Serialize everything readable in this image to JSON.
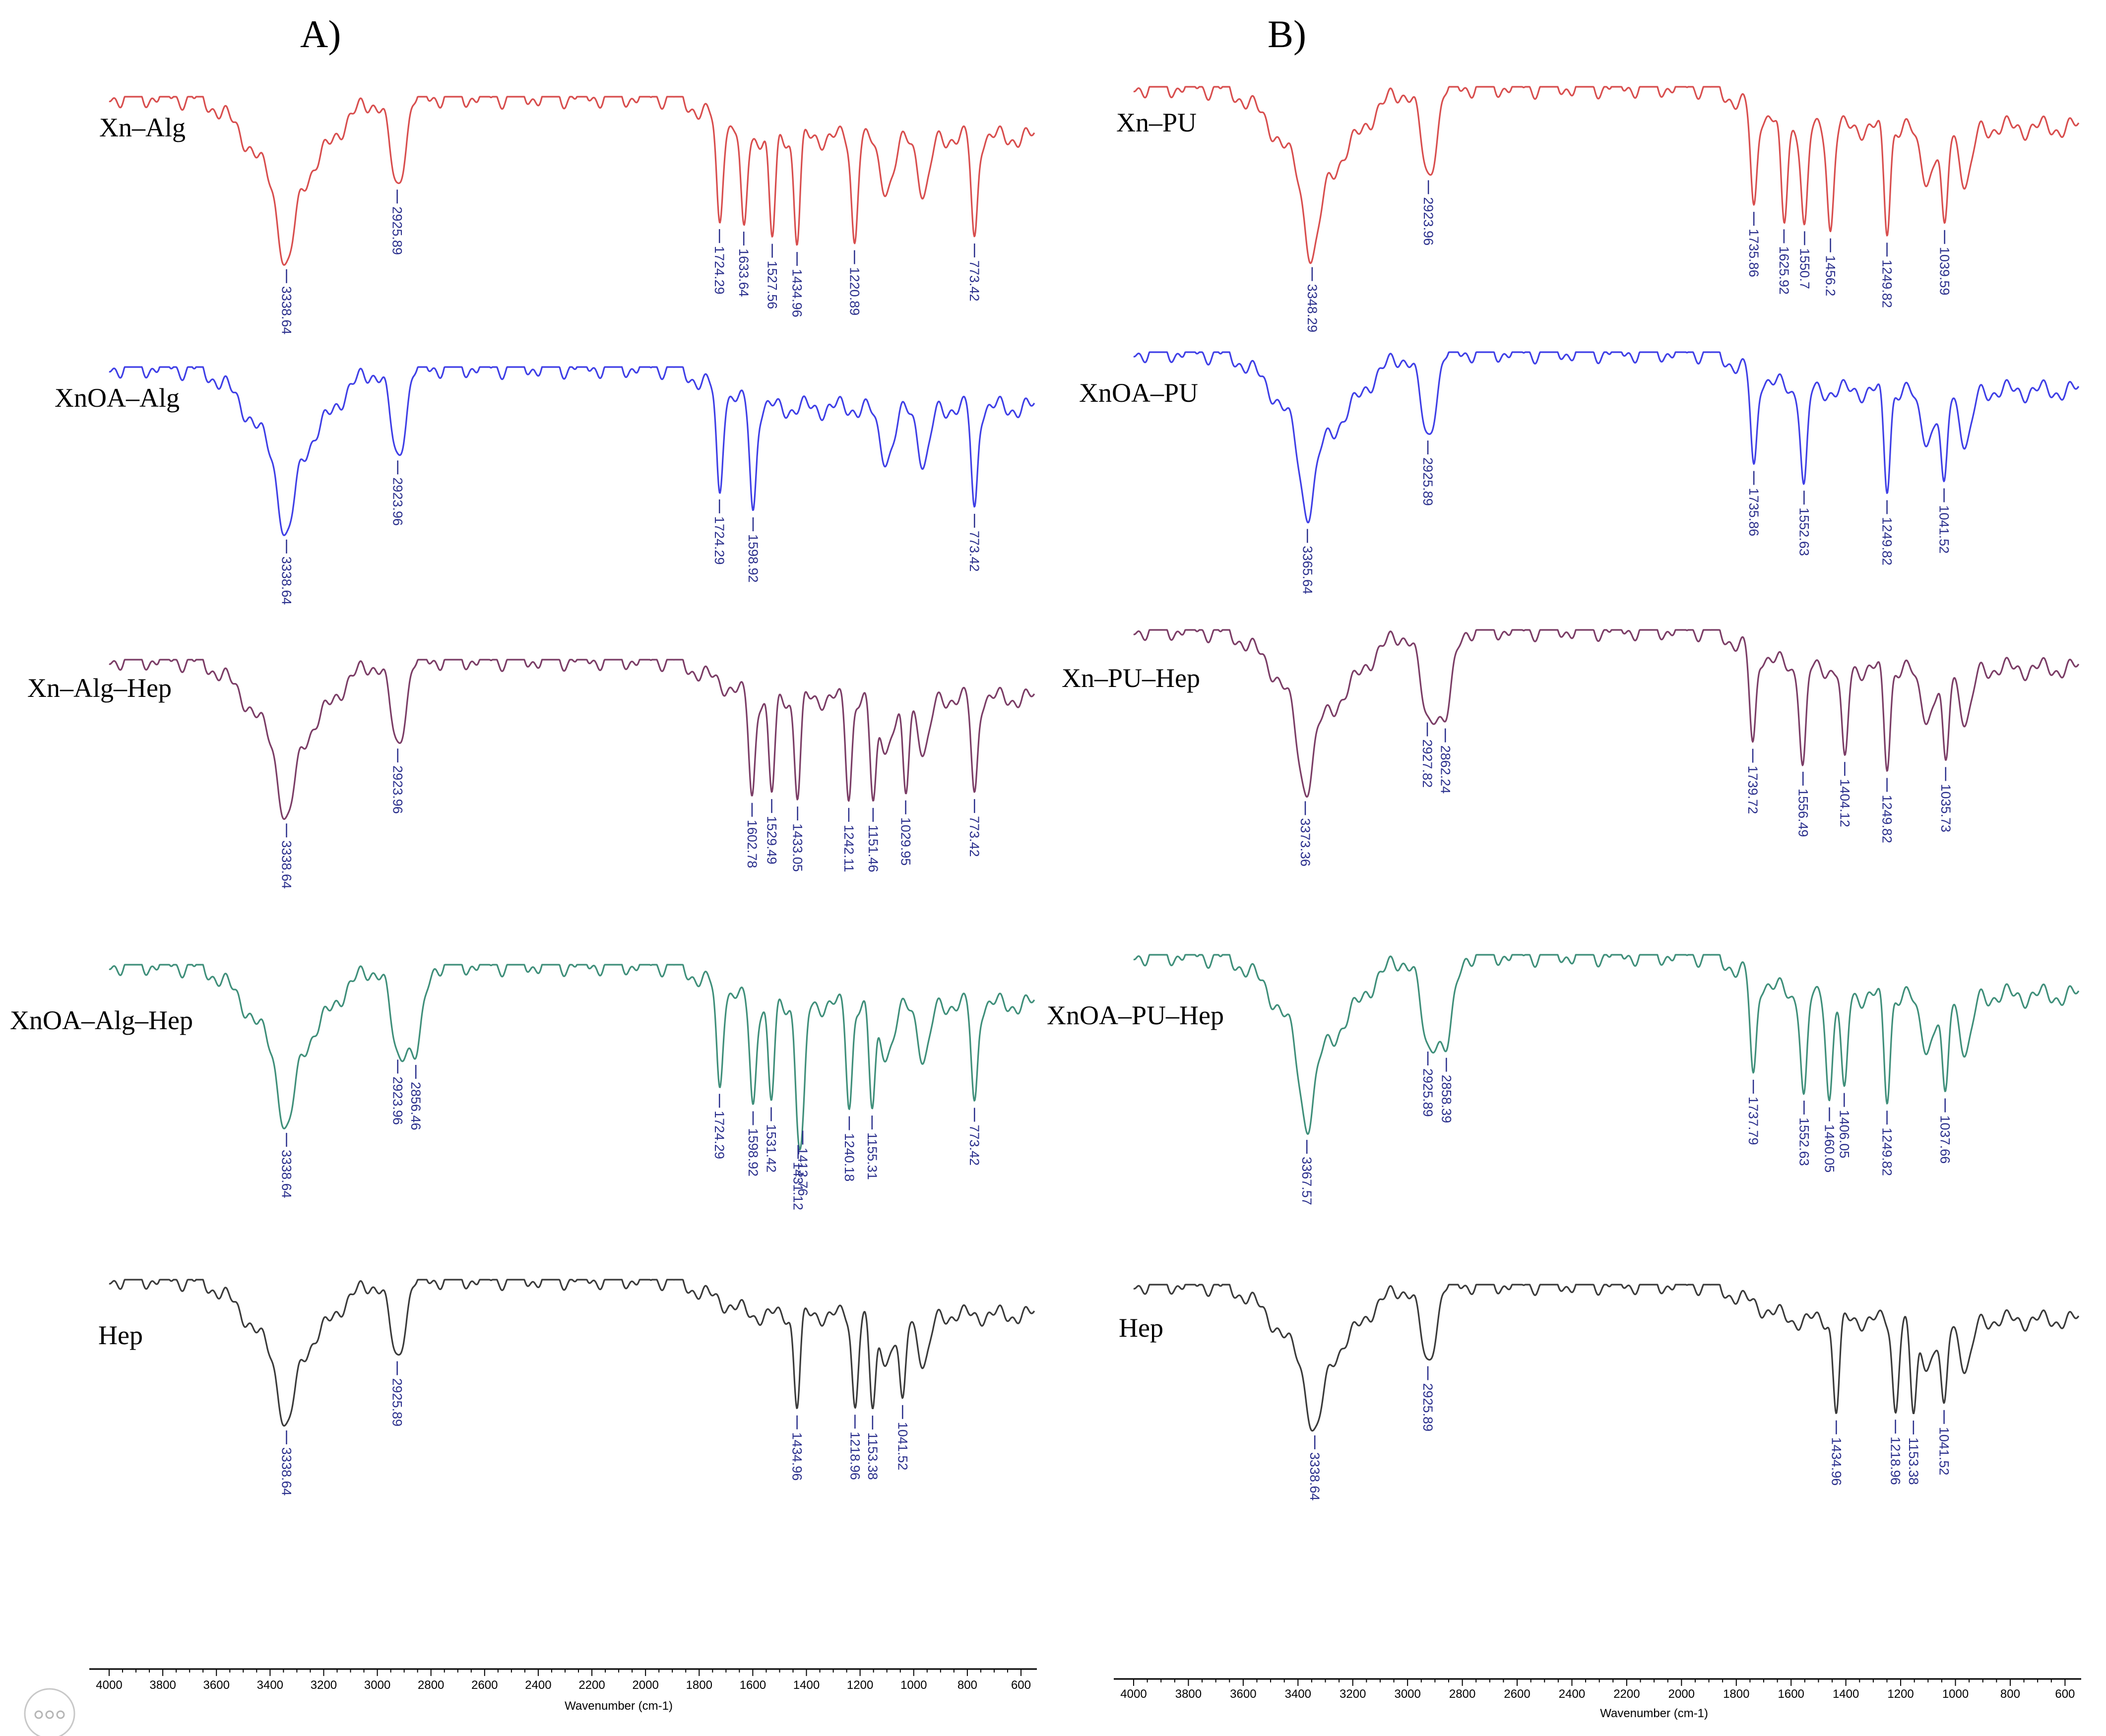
{
  "chart_data": [
    {
      "type": "line",
      "panel_label": "A)",
      "xlabel": "Wavenumber (cm-1)",
      "xlim": [
        4000,
        550
      ],
      "x_ticks": [
        4000,
        3800,
        3600,
        3400,
        3200,
        3000,
        2800,
        2600,
        2400,
        2200,
        2000,
        1800,
        1600,
        1400,
        1200,
        1000,
        800,
        600
      ],
      "grid": false,
      "series": [
        {
          "name": "Xn–Alg",
          "color": "#d84e4e",
          "peaks": [
            3338.64,
            2925.89,
            1724.29,
            1633.64,
            1527.56,
            1434.96,
            1220.89,
            773.42
          ]
        },
        {
          "name": "XnOA–Alg",
          "color": "#3f3fe6",
          "peaks": [
            3338.64,
            2923.96,
            1724.29,
            1598.92,
            773.42
          ]
        },
        {
          "name": "Xn–Alg–Hep",
          "color": "#7b3d66",
          "peaks": [
            3338.64,
            2923.96,
            1602.78,
            1529.49,
            1433.05,
            1242.11,
            1151.46,
            1029.95,
            773.42
          ]
        },
        {
          "name": "XnOA–Alg–Hep",
          "color": "#3f8f7a",
          "peaks": [
            3338.64,
            2923.96,
            2856.46,
            1724.29,
            1598.92,
            1531.42,
            1431.12,
            1413.76,
            1240.18,
            1155.31,
            773.42
          ]
        },
        {
          "name": "Hep",
          "color": "#3a3a3a",
          "peaks": [
            3338.64,
            2925.89,
            1434.96,
            1218.96,
            1153.38,
            1041.52
          ]
        }
      ]
    },
    {
      "type": "line",
      "panel_label": "B)",
      "xlabel": "Wavenumber (cm-1)",
      "xlim": [
        4000,
        550
      ],
      "x_ticks": [
        4000,
        3800,
        3600,
        3400,
        3200,
        3000,
        2800,
        2600,
        2400,
        2200,
        2000,
        1800,
        1600,
        1400,
        1200,
        1000,
        800,
        600
      ],
      "grid": false,
      "series": [
        {
          "name": "Xn–PU",
          "color": "#d84e4e",
          "peaks": [
            3348.29,
            2923.96,
            1735.86,
            1625.92,
            1550.7,
            1456.2,
            1249.82,
            1039.59
          ]
        },
        {
          "name": "XnOA–PU",
          "color": "#3f3fe6",
          "peaks": [
            3365.64,
            2925.89,
            1735.86,
            1552.63,
            1249.82,
            1041.52
          ]
        },
        {
          "name": "Xn–PU–Hep",
          "color": "#7b3d66",
          "peaks": [
            3373.36,
            2927.82,
            2862.24,
            1739.72,
            1556.49,
            1404.12,
            1249.82,
            1035.73
          ]
        },
        {
          "name": "XnOA–PU–Hep",
          "color": "#3f8f7a",
          "peaks": [
            3367.57,
            2925.89,
            2858.39,
            1737.79,
            1552.63,
            1460.05,
            1406.05,
            1249.82,
            1037.66
          ]
        },
        {
          "name": "Hep",
          "color": "#3a3a3a",
          "peaks": [
            3338.64,
            2925.89,
            1434.96,
            1218.96,
            1153.38,
            1041.52
          ]
        }
      ]
    }
  ]
}
